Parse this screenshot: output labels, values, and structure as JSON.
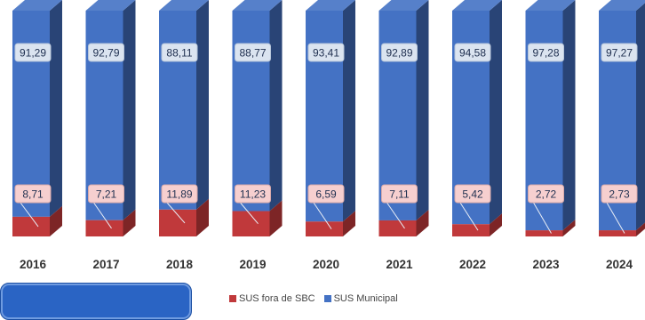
{
  "chart_data": {
    "type": "bar",
    "stacked": true,
    "percent_stacked": true,
    "categories": [
      "2016",
      "2017",
      "2018",
      "2019",
      "2020",
      "2021",
      "2022",
      "2023",
      "2024"
    ],
    "series": [
      {
        "name": "SUS fora de SBC",
        "color": "#c0393b",
        "values": [
          8.71,
          7.21,
          11.89,
          11.23,
          6.59,
          7.11,
          5.42,
          2.72,
          2.73
        ],
        "labels": [
          "8,71",
          "7,21",
          "11,89",
          "11,23",
          "6,59",
          "7,11",
          "5,42",
          "2,72",
          "2,73"
        ]
      },
      {
        "name": "SUS Municipal",
        "color": "#4472c4",
        "values": [
          91.29,
          92.79,
          88.11,
          88.77,
          93.41,
          92.89,
          94.58,
          97.28,
          97.27
        ],
        "labels": [
          "91,29",
          "92,79",
          "88,11",
          "88,77",
          "93,41",
          "92,89",
          "94,58",
          "97,28",
          "97,27"
        ]
      }
    ],
    "ylim": [
      0,
      100
    ],
    "grid": false,
    "legend_position": "bottom"
  }
}
